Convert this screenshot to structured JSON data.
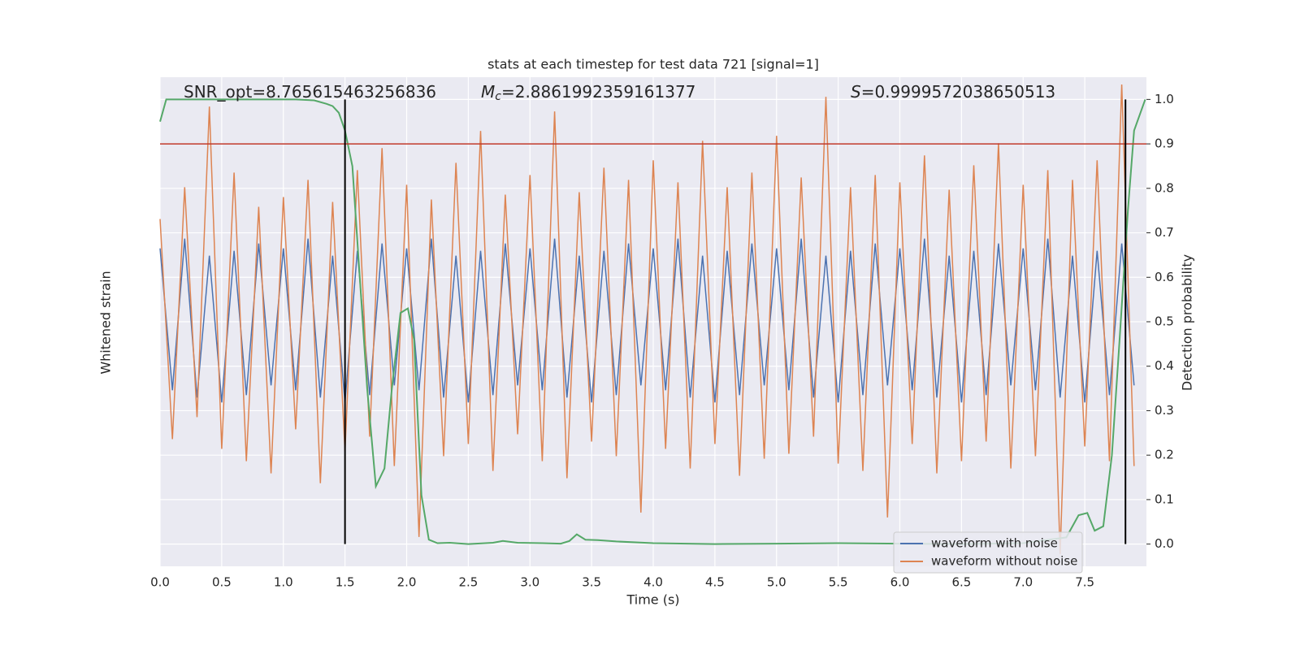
{
  "chart_data": {
    "type": "line",
    "title": "stats at each timestep for test data 721 [signal=1]",
    "x_label": "Time (s)",
    "y_label": "Whitened strain",
    "y2_label": "Detection probability",
    "annotations": [
      {
        "text": "SNR_opt=8.765615463256836"
      },
      {
        "symbol": "M",
        "sub": "c",
        "text": "=2.8861992359161377"
      },
      {
        "symbol": "S",
        "text": "=0.9999572038650513"
      }
    ],
    "xlim": [
      0,
      8
    ],
    "xticks": [
      {
        "value": 0,
        "label": "0.0"
      },
      0.5,
      {
        "value": 1,
        "label": "1.0"
      },
      1.5,
      {
        "value": 2,
        "label": "2.0"
      },
      2.5,
      {
        "value": 3,
        "label": "3.0"
      },
      3.5,
      {
        "value": 4,
        "label": "4.0"
      },
      4.5,
      {
        "value": 5,
        "label": "5.0"
      },
      5.5,
      {
        "value": 6,
        "label": "6.0"
      },
      6.5,
      {
        "value": 7,
        "label": "7.0"
      },
      7.5
    ],
    "ylim": [
      -1,
      1
    ],
    "y2lim": [
      -0.05,
      1.05
    ],
    "y2ticks": [
      {
        "value": 0,
        "label": "0.0"
      },
      0.1,
      0.2,
      0.3,
      0.4,
      0.5,
      0.6,
      0.7,
      0.8,
      0.9,
      {
        "value": 1,
        "label": "1.0"
      }
    ],
    "grid": true,
    "legend": "lower right",
    "threshold": {
      "value": 0.9,
      "color": "#c0392b"
    },
    "vlines": {
      "values": [
        1.5,
        7.83
      ],
      "color": "#000000"
    },
    "x": [
      0,
      0.1,
      0.2,
      0.3,
      0.4,
      0.5,
      0.6,
      0.7,
      0.8,
      0.9,
      1,
      1.1,
      1.2,
      1.3,
      1.4,
      1.5,
      1.6,
      1.7,
      1.8,
      1.9,
      2,
      2.1,
      2.2,
      2.3,
      2.4,
      2.5,
      2.6,
      2.7,
      2.8,
      2.9,
      3,
      3.1,
      3.2,
      3.3,
      3.4,
      3.5,
      3.6,
      3.7,
      3.8,
      3.9,
      4,
      4.1,
      4.2,
      4.3,
      4.4,
      4.5,
      4.6,
      4.7,
      4.8,
      4.9,
      5,
      5.1,
      5.2,
      5.3,
      5.4,
      5.5,
      5.6,
      5.7,
      5.8,
      5.9,
      6,
      6.1,
      6.2,
      6.3,
      6.4,
      6.5,
      6.6,
      6.7,
      6.8,
      6.9,
      7,
      7.1,
      7.2,
      7.3,
      7.4,
      7.5,
      7.6,
      7.7,
      7.8,
      7.9
    ],
    "series": [
      {
        "name": "waveform with noise",
        "color": "#4c72b0",
        "values": [
          0.3,
          -0.28,
          0.34,
          -0.31,
          0.27,
          -0.33,
          0.29,
          -0.3,
          0.32,
          -0.26,
          0.3,
          -0.28,
          0.34,
          -0.31,
          0.27,
          -0.33,
          0.29,
          -0.3,
          0.32,
          -0.26,
          0.3,
          -0.28,
          0.34,
          -0.31,
          0.27,
          -0.33,
          0.29,
          -0.3,
          0.32,
          -0.26,
          0.3,
          -0.28,
          0.34,
          -0.31,
          0.27,
          -0.33,
          0.29,
          -0.3,
          0.32,
          -0.26,
          0.3,
          -0.28,
          0.34,
          -0.31,
          0.27,
          -0.33,
          0.29,
          -0.3,
          0.32,
          -0.26,
          0.3,
          -0.28,
          0.34,
          -0.31,
          0.27,
          -0.33,
          0.29,
          -0.3,
          0.32,
          -0.26,
          0.3,
          -0.28,
          0.34,
          -0.31,
          0.27,
          -0.33,
          0.29,
          -0.3,
          0.32,
          -0.26,
          0.3,
          -0.28,
          0.34,
          -0.31,
          0.27,
          -0.33,
          0.29,
          -0.3,
          0.32,
          -0.26
        ]
      },
      {
        "name": "waveform without noise",
        "color": "#dd8452",
        "values": [
          0.42,
          -0.48,
          0.55,
          -0.39,
          0.88,
          -0.52,
          0.61,
          -0.57,
          0.47,
          -0.62,
          0.51,
          -0.44,
          0.58,
          -0.66,
          0.49,
          -0.53,
          0.62,
          -0.47,
          0.71,
          -0.59,
          0.56,
          -0.88,
          0.5,
          -0.55,
          0.65,
          -0.5,
          0.78,
          -0.61,
          0.52,
          -0.46,
          0.6,
          -0.57,
          0.86,
          -0.64,
          0.53,
          -0.49,
          0.63,
          -0.55,
          0.58,
          -0.78,
          0.66,
          -0.52,
          0.57,
          -0.6,
          0.74,
          -0.5,
          0.55,
          -0.63,
          0.61,
          -0.56,
          0.76,
          -0.54,
          0.59,
          -0.47,
          0.92,
          -0.58,
          0.55,
          -0.61,
          0.6,
          -0.8,
          0.57,
          -0.5,
          0.68,
          -0.62,
          0.54,
          -0.57,
          0.64,
          -0.49,
          0.73,
          -0.6,
          0.56,
          -0.55,
          0.62,
          -0.95,
          0.58,
          -0.51,
          0.66,
          -0.57,
          0.97,
          -0.59
        ]
      },
      {
        "color": "#55a868",
        "axis": "y2",
        "x": [
          0,
          0.05,
          0.15,
          0.3,
          0.5,
          0.8,
          1.1,
          1.25,
          1.35,
          1.4,
          1.45,
          1.5,
          1.56,
          1.62,
          1.68,
          1.75,
          1.82,
          1.88,
          1.95,
          2.01,
          2.06,
          2.12,
          2.18,
          2.25,
          2.35,
          2.5,
          2.7,
          2.78,
          2.9,
          3.1,
          3.25,
          3.32,
          3.38,
          3.45,
          3.55,
          3.7,
          4,
          4.5,
          5,
          5.5,
          6,
          6.5,
          7,
          7.35,
          7.45,
          7.52,
          7.58,
          7.65,
          7.72,
          7.78,
          7.85,
          7.9,
          7.99
        ],
        "values": [
          0.95,
          1,
          1,
          1,
          1,
          1,
          1,
          0.998,
          0.99,
          0.985,
          0.97,
          0.93,
          0.85,
          0.6,
          0.35,
          0.13,
          0.17,
          0.35,
          0.52,
          0.53,
          0.46,
          0.11,
          0.01,
          0.002,
          0.003,
          0,
          0.003,
          0.007,
          0.003,
          0.002,
          0.001,
          0.007,
          0.022,
          0.01,
          0.009,
          0.006,
          0.002,
          0,
          0.001,
          0.002,
          0.001,
          0,
          0.002,
          0.015,
          0.065,
          0.07,
          0.03,
          0.04,
          0.2,
          0.45,
          0.75,
          0.93,
          1
        ]
      }
    ]
  }
}
